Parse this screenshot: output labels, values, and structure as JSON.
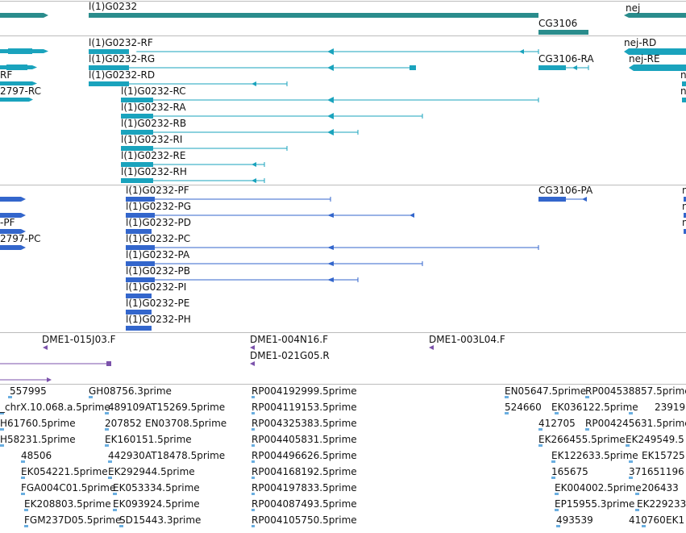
{
  "colors": {
    "gene": "#2a8c8c",
    "transcript": "#1aa3bd",
    "protein": "#3366cc",
    "clone": "#7b52ab",
    "est": "#6aaee0",
    "separator": "#bcbcbc"
  },
  "gene_track": {
    "genes": [
      "l(1)G0232",
      "CG3106",
      "nej"
    ]
  },
  "transcript_track": {
    "items": [
      "l(1)G0232-RF",
      "l(1)G0232-RG",
      "l(1)G0232-RD",
      "l(1)G0232-RC",
      "l(1)G0232-RA",
      "l(1)G0232-RB",
      "l(1)G0232-RI",
      "l(1)G0232-RE",
      "l(1)G0232-RH",
      "CG3106-RA",
      "nej-RD",
      "nej-RE",
      "RF",
      "2797-RC",
      "n",
      "n"
    ]
  },
  "protein_track": {
    "items": [
      "l(1)G0232-PF",
      "l(1)G0232-PG",
      "l(1)G0232-PD",
      "l(1)G0232-PC",
      "l(1)G0232-PA",
      "l(1)G0232-PB",
      "l(1)G0232-PI",
      "l(1)G0232-PE",
      "l(1)G0232-PH",
      "CG3106-PA",
      "-PF",
      "2797-PC",
      "n",
      "n",
      "n"
    ]
  },
  "clone_track": {
    "items": [
      "DME1-015J03.F",
      "DME1-004N16.F",
      "DME1-021G05.R",
      "DME1-003L04.F"
    ]
  },
  "est_track": {
    "items": [
      "557995",
      "GH08756.3prime",
      "RP004192999.5prime",
      "EN05647.5prime",
      "RP004538857.5prime",
      "_chrX.10.068.a.5prime",
      "489109",
      "AT15269.5prime",
      "RP004119153.5prime",
      "524660",
      "EK036122.5prime",
      "23919",
      "H61760.5prime",
      "207852",
      "EN03708.5prime",
      "RP004325383.5prime",
      "412705",
      "RP004245631.5prime",
      "H58231.5prime",
      "EK160151.5prime",
      "RP004405831.5prime",
      "EK266455.5prime",
      "EK249549.5",
      "48506",
      "442930",
      "AT18478.5prime",
      "RP004496626.5prime",
      "EK122633.5prime",
      "EK15725",
      "EK054221.5prime",
      "EK292944.5prime",
      "RP004168192.5prime",
      "165675",
      "371651196",
      "FGA004C01.5prime",
      "EK053334.5prime",
      "RP004197833.5prime",
      "EK004002.5prime",
      "206433",
      "EK208803.5prime",
      "EK093924.5prime",
      "RP004087493.5prime",
      "EP15955.3prime",
      "EK229233",
      "FGM237D05.5prime",
      "SD15443.3prime",
      "RP004105750.5prime",
      "493539",
      "410760",
      "EK1"
    ]
  }
}
